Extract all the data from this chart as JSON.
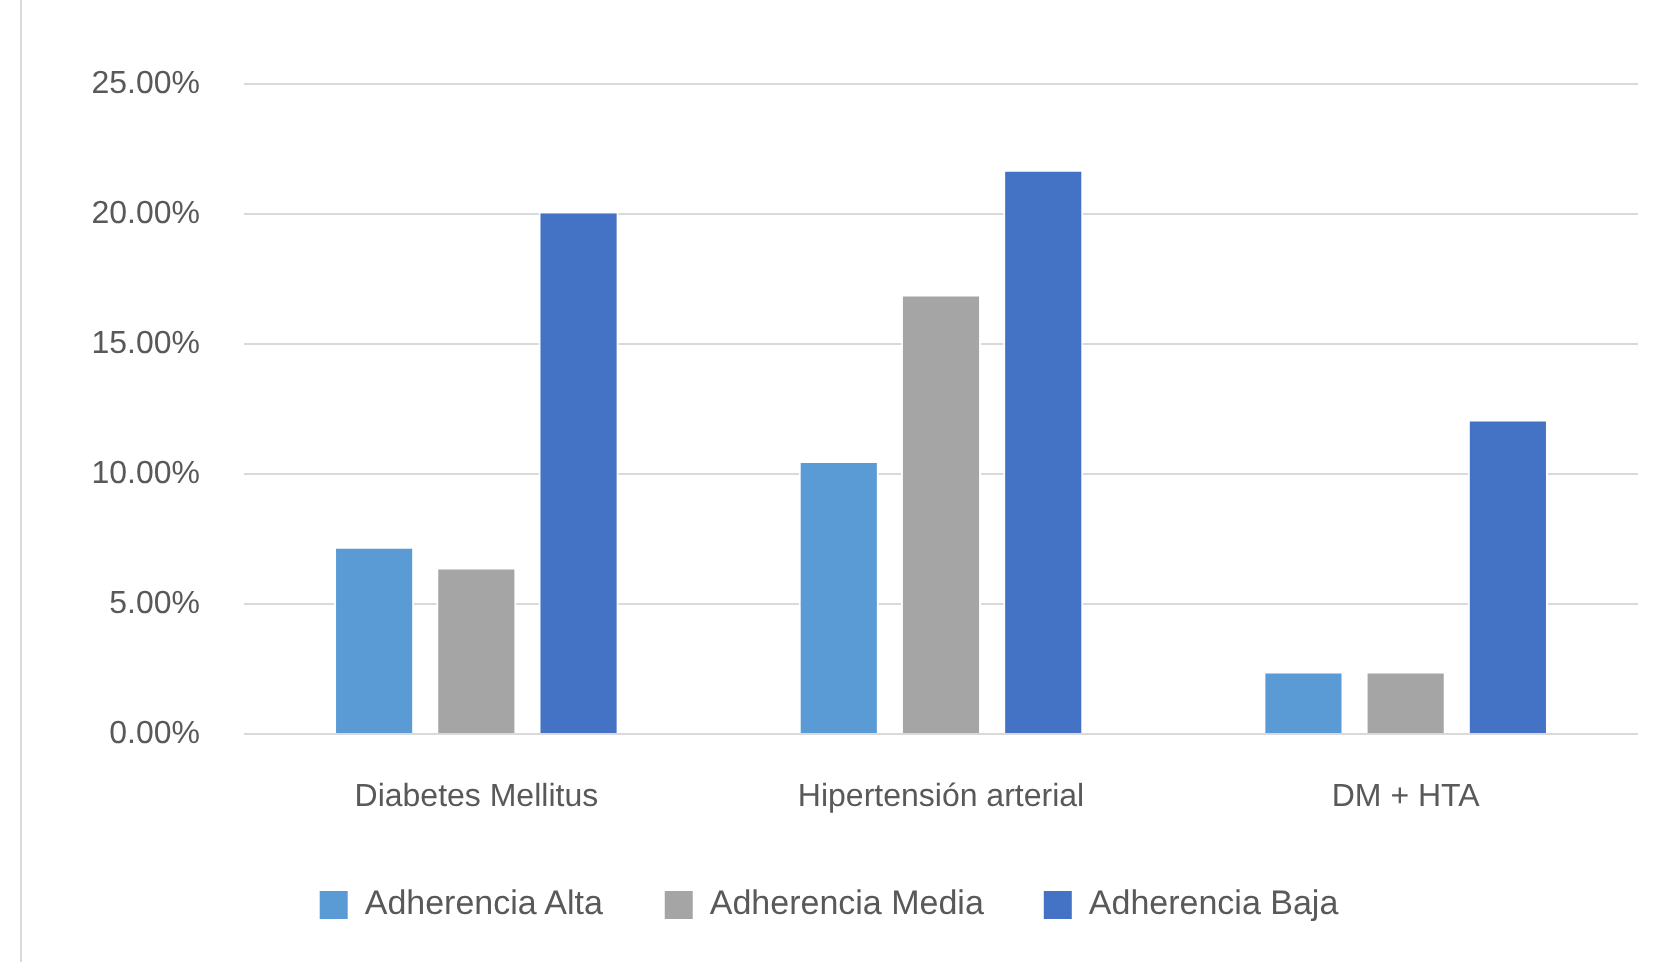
{
  "chart_data": {
    "type": "bar",
    "categories": [
      "Diabetes Mellitus",
      "Hipertensión arterial",
      "DM + HTA"
    ],
    "series": [
      {
        "name": "Adherencia Alta",
        "color": "#5b9bd5",
        "values": [
          7.2,
          10.5,
          2.4
        ]
      },
      {
        "name": "Adherencia Media",
        "color": "#a5a5a5",
        "values": [
          6.4,
          16.9,
          2.4
        ]
      },
      {
        "name": "Adherencia Baja",
        "color": "#4472c4",
        "values": [
          20.1,
          21.7,
          12.1
        ]
      }
    ],
    "ylim": [
      0,
      25
    ],
    "yticks": [
      {
        "value": 0,
        "label": "0.00%"
      },
      {
        "value": 5,
        "label": "5.00%"
      },
      {
        "value": 10,
        "label": "10.00%"
      },
      {
        "value": 15,
        "label": "15.00%"
      },
      {
        "value": 20,
        "label": "20.00%"
      },
      {
        "value": 25,
        "label": "25.00%"
      }
    ],
    "grid": "y",
    "legend": "bottom"
  }
}
